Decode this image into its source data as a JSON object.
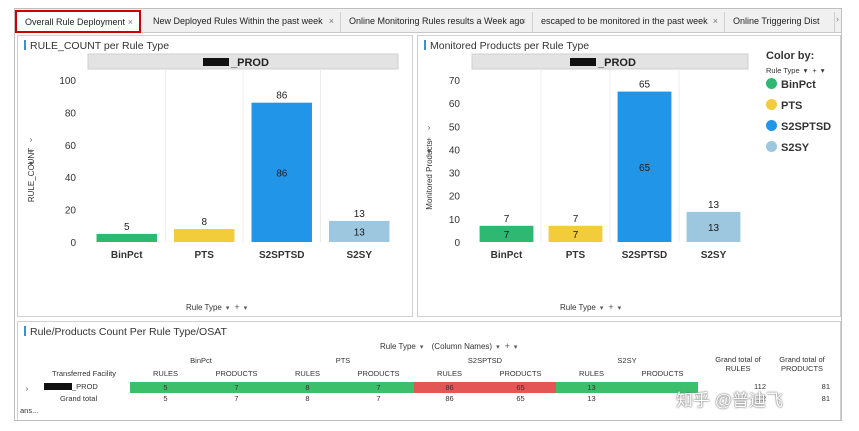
{
  "tabs": [
    {
      "label": "Overall Rule Deployment",
      "active": true
    },
    {
      "label": "New Deployed Rules Within the past week",
      "active": false
    },
    {
      "label": "Online Monitoring Rules results a Week ago",
      "active": false
    },
    {
      "label": "escaped to be monitored in the past week",
      "active": false
    },
    {
      "label": "Online Triggering Dist",
      "active": false
    }
  ],
  "colors": {
    "BinPct": "#2eb872",
    "PTS": "#f2cc3a",
    "S2SPTSD": "#2196e8",
    "S2SY": "#9cc7de",
    "red_cell": "#e45656",
    "green_cell": "#3cbf6a"
  },
  "chart_data": [
    {
      "type": "bar",
      "title": "RULE_COUNT per Rule Type",
      "panel_header": "_PROD",
      "categories": [
        "BinPct",
        "PTS",
        "S2SPTSD",
        "S2SY"
      ],
      "values": [
        5,
        8,
        86,
        13
      ],
      "ylabel": "RULE_COUNT",
      "xlabel": "Rule Type",
      "yticks": [
        0,
        20,
        40,
        60,
        80,
        100
      ],
      "ylim": [
        0,
        100
      ],
      "inside_labels": [
        false,
        false,
        true,
        true
      ]
    },
    {
      "type": "bar",
      "title": "Monitored Products per Rule Type",
      "panel_header": "_PROD",
      "categories": [
        "BinPct",
        "PTS",
        "S2SPTSD",
        "S2SY"
      ],
      "values": [
        7,
        7,
        65,
        13
      ],
      "ylabel": "Monitored Products",
      "xlabel": "Rule Type",
      "yticks": [
        0,
        10,
        20,
        30,
        40,
        50,
        60,
        70
      ],
      "ylim": [
        0,
        70
      ],
      "inside_labels": [
        true,
        true,
        true,
        true
      ]
    }
  ],
  "legend": {
    "title": "Color by:",
    "control_label": "Rule Type",
    "items": [
      "BinPct",
      "PTS",
      "S2SPTSD",
      "S2SY"
    ]
  },
  "table_panel": {
    "title": "Rule/Products Count Per Rule Type/OSAT",
    "ctrl_rule_type": "Rule Type",
    "ctrl_column_names": "(Column Names)",
    "row_header": "Transferred Facility",
    "groups": [
      "BinPct",
      "PTS",
      "S2SPTSD",
      "S2SY"
    ],
    "subheaders": [
      "RULES",
      "PRODUCTS"
    ],
    "grand_rules_header": "Grand total of RULES",
    "grand_products_header": "Grand total of PRODUCTS",
    "rows": [
      {
        "label": "_PROD",
        "values": [
          "5",
          "7",
          "8",
          "7",
          "86",
          "65",
          "13",
          ""
        ],
        "grand_rules": "112",
        "grand_products": "81"
      },
      {
        "label": "Grand total",
        "values": [
          "5",
          "7",
          "8",
          "7",
          "86",
          "65",
          "13",
          ""
        ],
        "grand_rules": "112",
        "grand_products": "81"
      }
    ],
    "left_label": "ans..."
  },
  "watermark": "知乎 @普迪飞"
}
